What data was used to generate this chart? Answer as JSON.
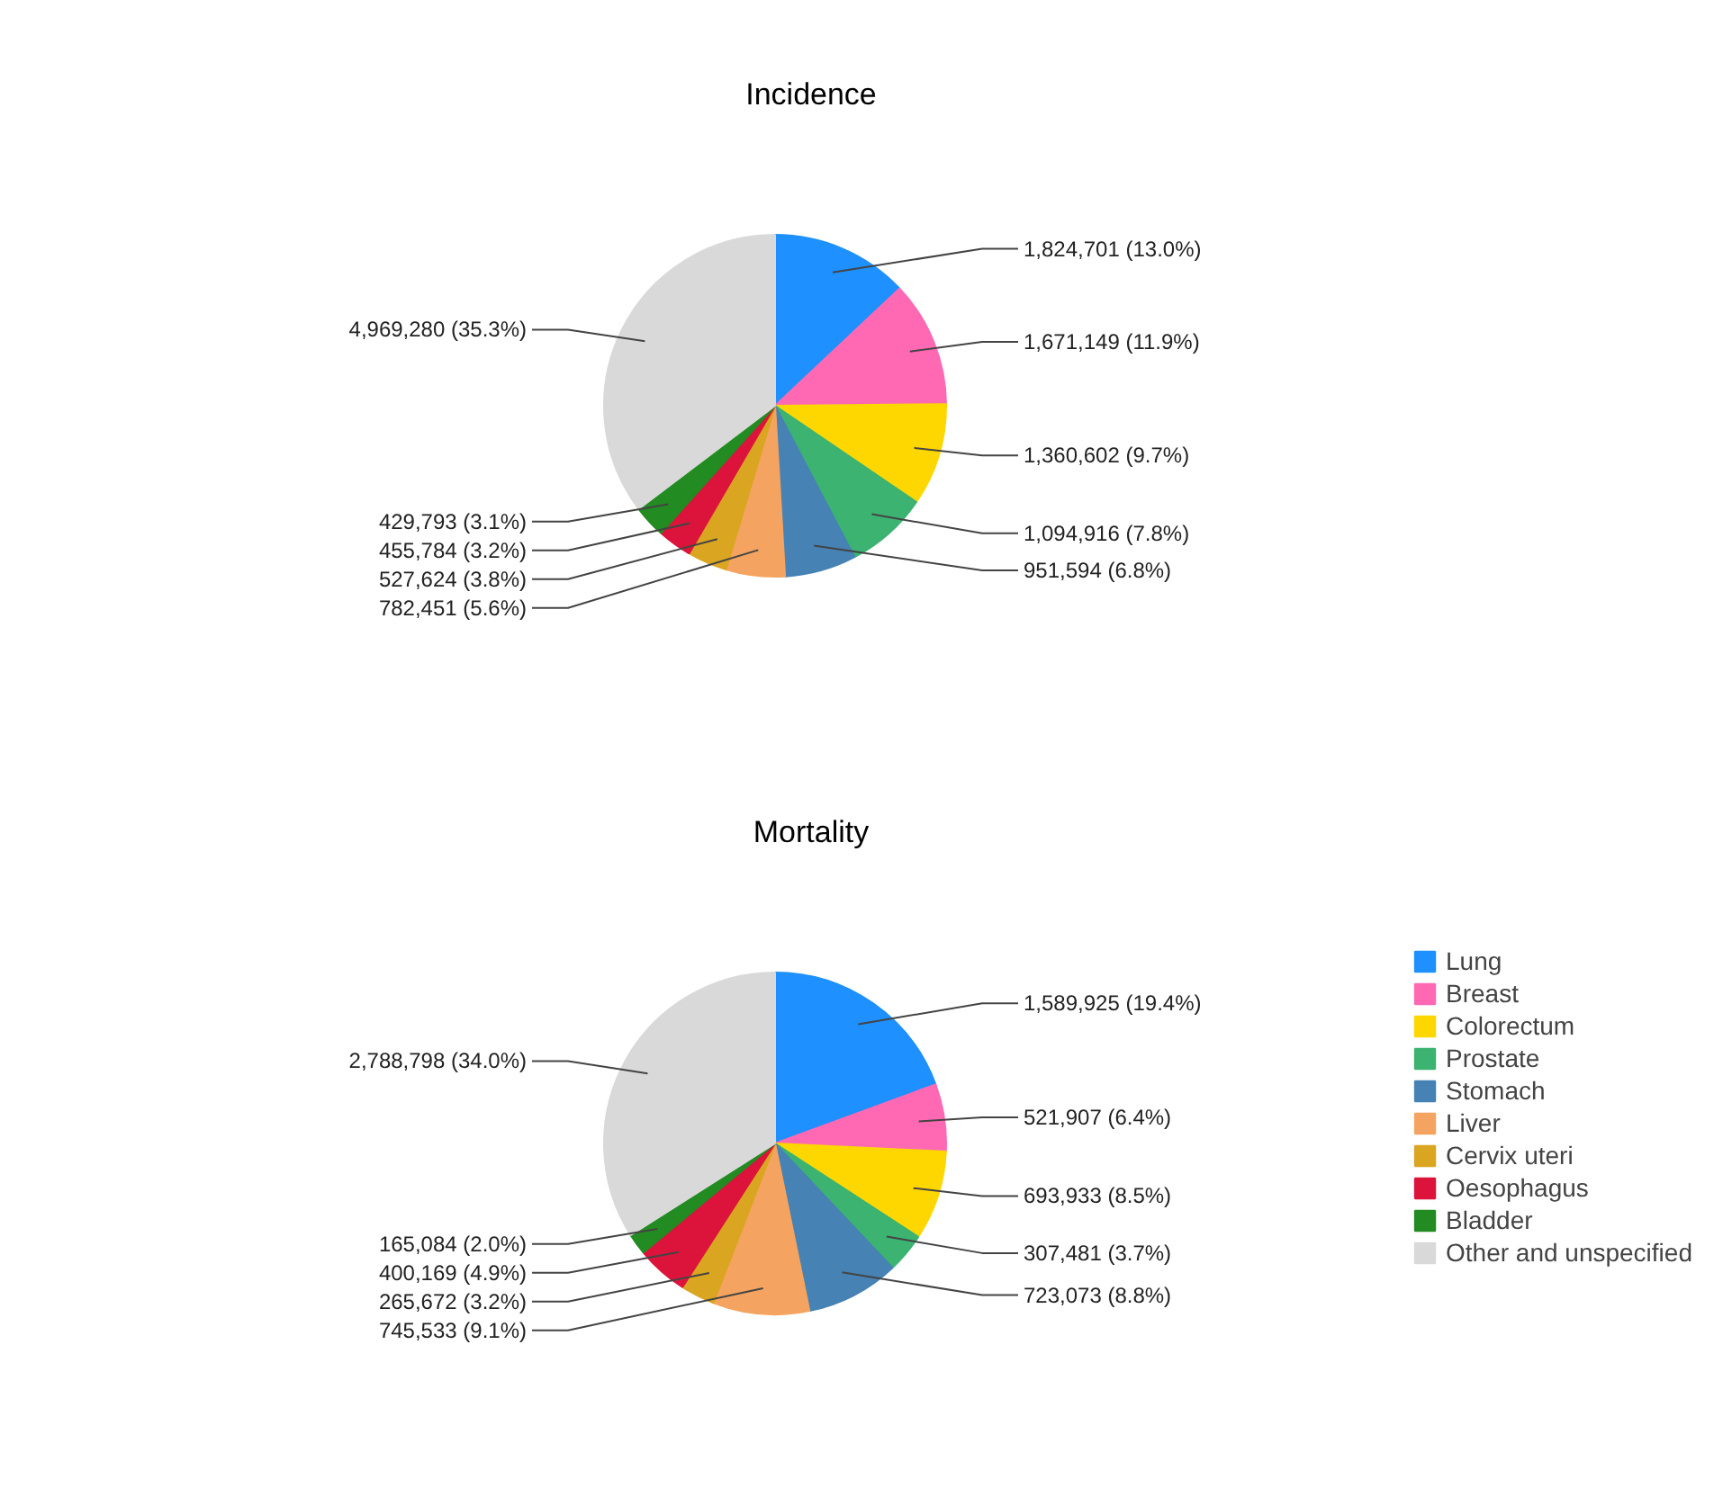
{
  "chart_data": [
    {
      "type": "pie",
      "title": "Incidence",
      "categories": [
        null,
        null,
        null,
        null,
        null,
        null,
        null,
        null,
        null,
        null
      ],
      "values": [
        1824701,
        1671149,
        1360602,
        1094916,
        951594,
        782451,
        527624,
        455784,
        429793,
        4969280
      ],
      "value_labels": [
        "1,824,701 (13.0%)",
        "1,671,149 (11.9%)",
        "1,360,602 (9.7%)",
        "1,094,916 (7.8%)",
        "951,594 (6.8%)",
        "782,451 (5.6%)",
        "527,624 (3.8%)",
        "455,784 (3.2%)",
        "429,793 (3.1%)",
        "4,969,280 (35.3%)"
      ],
      "colors": [
        "#1e90ff",
        "#ff69b4",
        "#ffd700",
        "#3cb371",
        "#4682b4",
        "#f4a460",
        "#daa520",
        "#dc143c",
        "#228b22",
        "#d9d9d9"
      ]
    },
    {
      "type": "pie",
      "title": "Mortality",
      "categories": [
        "Lung",
        "Breast",
        "Colorectum",
        "Prostate",
        "Stomach",
        "Liver",
        "Cervix uteri",
        "Oesophagus",
        "Bladder",
        "Other and unspecified"
      ],
      "values": [
        1589925,
        521907,
        693933,
        307481,
        723073,
        745533,
        265672,
        400169,
        165084,
        2788798
      ],
      "value_labels": [
        "1,589,925 (19.4%)",
        "521,907 (6.4%)",
        "693,933 (8.5%)",
        "307,481 (3.7%)",
        "723,073 (8.8%)",
        "745,533 (9.1%)",
        "265,672 (3.2%)",
        "400,169 (4.9%)",
        "165,084 (2.0%)",
        "2,788,798 (34.0%)"
      ],
      "colors": [
        "#1e90ff",
        "#ff69b4",
        "#ffd700",
        "#3cb371",
        "#4682b4",
        "#f4a460",
        "#daa520",
        "#dc143c",
        "#228b22",
        "#d9d9d9"
      ],
      "legend": "right"
    }
  ]
}
